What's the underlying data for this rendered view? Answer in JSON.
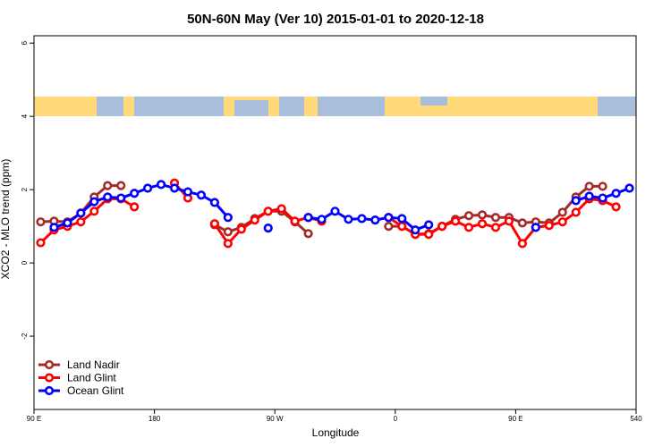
{
  "chart_data": {
    "type": "line",
    "title": "50N-60N May (Ver 10)   2015-01-01 to 2020-12-18",
    "x_label": "Longitude",
    "y_label": "XCO2 - MLO trend (ppm)",
    "x": [
      95,
      105,
      115,
      125,
      135,
      145,
      155,
      165,
      175,
      185,
      195,
      205,
      215,
      225,
      235,
      245,
      255,
      265,
      275,
      285,
      295,
      305,
      315,
      325,
      335,
      345,
      355,
      365,
      375,
      385,
      395,
      405,
      415,
      425,
      435,
      445,
      455,
      465,
      475,
      485,
      495,
      505,
      515,
      525,
      535
    ],
    "series": [
      {
        "name": "Land Nadir",
        "color": "#a52a2a",
        "values": [
          1.12,
          1.14,
          1.12,
          1.36,
          1.8,
          2.11,
          2.11,
          null,
          null,
          null,
          null,
          null,
          null,
          1.04,
          0.85,
          0.97,
          1.21,
          1.41,
          1.41,
          1.12,
          0.8,
          null,
          null,
          null,
          null,
          null,
          1.0,
          1.0,
          0.78,
          0.8,
          1.0,
          1.19,
          1.29,
          1.31,
          1.24,
          1.24,
          1.09,
          1.12,
          1.09,
          1.38,
          1.8,
          2.09,
          2.09,
          null,
          null
        ]
      },
      {
        "name": "Land Glint",
        "color": "#ff0000",
        "values": [
          0.55,
          0.9,
          1.0,
          1.12,
          1.41,
          1.75,
          1.75,
          1.53,
          null,
          null,
          2.18,
          1.77,
          null,
          1.07,
          0.53,
          0.92,
          1.17,
          1.41,
          1.48,
          1.14,
          1.24,
          1.14,
          null,
          null,
          null,
          null,
          1.24,
          1.0,
          0.78,
          0.78,
          1.0,
          1.14,
          0.97,
          1.07,
          0.97,
          1.14,
          0.53,
          0.97,
          1.02,
          1.12,
          1.38,
          1.75,
          1.7,
          1.53,
          null
        ]
      },
      {
        "name": "Ocean Glint",
        "color": "#0000ff",
        "values": [
          null,
          0.97,
          1.09,
          1.36,
          1.67,
          1.8,
          1.77,
          1.9,
          2.04,
          2.14,
          2.04,
          1.94,
          1.85,
          1.65,
          1.24,
          null,
          null,
          0.95,
          null,
          null,
          1.24,
          1.19,
          1.41,
          1.19,
          1.21,
          1.17,
          1.24,
          1.21,
          0.9,
          1.04,
          null,
          null,
          null,
          null,
          null,
          null,
          null,
          0.97,
          null,
          null,
          1.7,
          1.82,
          1.77,
          1.9,
          2.04
        ]
      }
    ],
    "xlim": [
      90,
      540
    ],
    "xticks": [
      {
        "value": 90,
        "label": "90 E"
      },
      180,
      {
        "value": 270,
        "label": "90 W"
      },
      {
        "value": 360,
        "label": "0"
      },
      {
        "value": 450,
        "label": "90 E"
      },
      540
    ],
    "ylim": [
      -4,
      6.2
    ],
    "yticks": [
      -2,
      0,
      2,
      4,
      6
    ],
    "legend": "bottom-left"
  }
}
